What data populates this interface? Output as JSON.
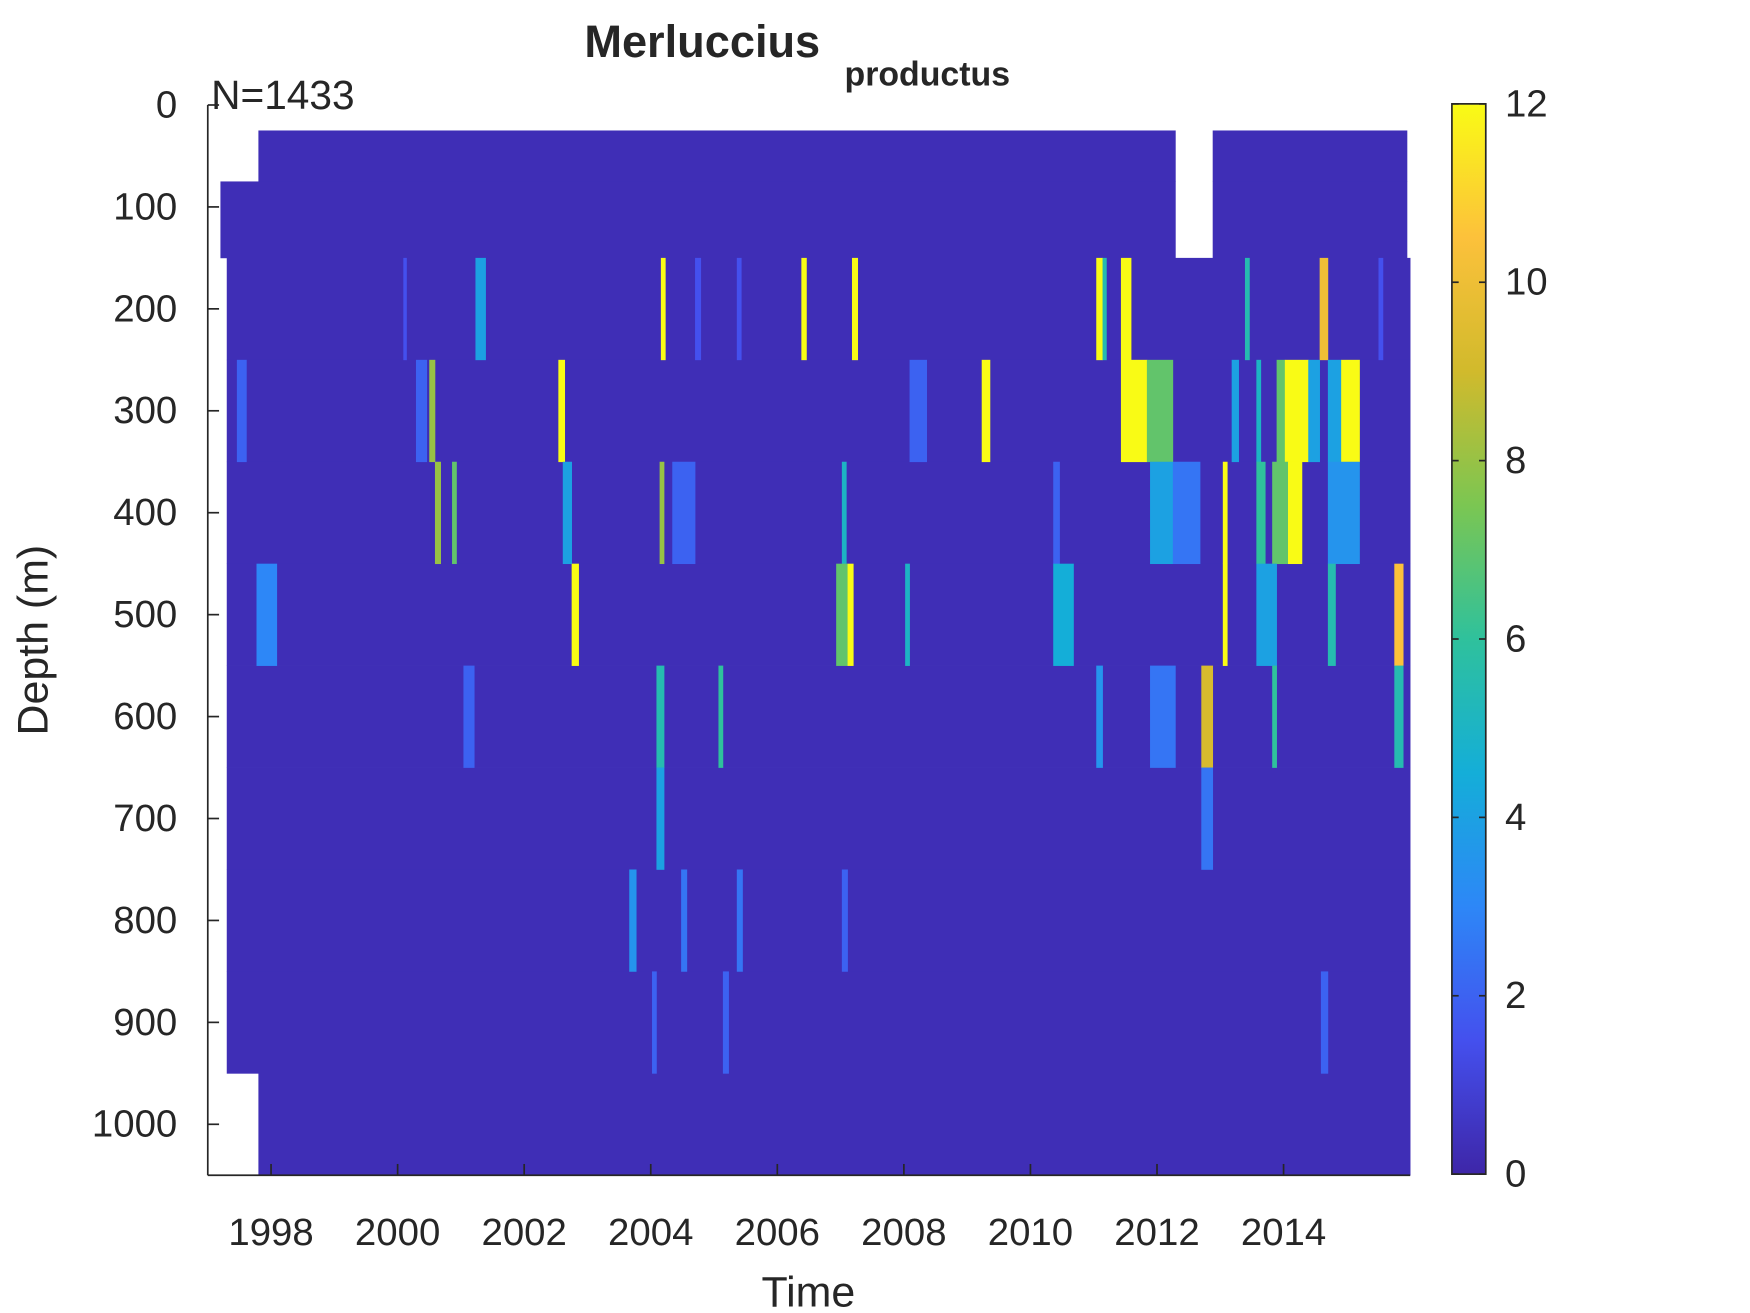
{
  "chart_data": {
    "type": "heatmap",
    "title": "Merluccius",
    "title_subscript": "productus",
    "annotation": "N=1433",
    "x_label": "Time",
    "y_label": "Depth (m)",
    "xlim": [
      1997,
      2016
    ],
    "xticks": [
      1998,
      2000,
      2002,
      2004,
      2006,
      2008,
      2010,
      2012,
      2014
    ],
    "ylim": [
      0,
      1050
    ],
    "y_reversed": true,
    "yticks": [
      0,
      100,
      200,
      300,
      400,
      500,
      600,
      700,
      800,
      900,
      1000
    ],
    "clim": [
      0,
      12
    ],
    "cticks": [
      0,
      2,
      4,
      6,
      8,
      10,
      12
    ],
    "colormap": [
      "#3e26a8",
      "#4450ee",
      "#2d87f7",
      "#14aed8",
      "#2fc19c",
      "#7bc652",
      "#d1ba2c",
      "#fcc13b",
      "#f9fb15"
    ],
    "cells": [
      [
        1997.8,
        2012.29,
        25,
        75,
        0.3
      ],
      [
        2012.88,
        2015.95,
        25,
        75,
        0.3
      ],
      [
        1997.2,
        2012.29,
        75,
        150,
        0.3
      ],
      [
        2012.88,
        2015.95,
        75,
        150,
        0.3
      ],
      [
        1997.3,
        2016,
        150,
        250,
        0.3
      ],
      [
        1997.3,
        2016,
        250,
        350,
        0.3
      ],
      [
        1997.3,
        2016,
        350,
        450,
        0.3
      ],
      [
        1997.3,
        2016,
        450,
        550,
        0.3
      ],
      [
        1997.3,
        2016,
        550,
        650,
        0.3
      ],
      [
        1997.3,
        2016,
        650,
        750,
        0.3
      ],
      [
        1997.3,
        2016,
        750,
        850,
        0.3
      ],
      [
        1997.3,
        2016,
        850,
        950,
        0.3
      ],
      [
        1997.8,
        2016,
        950,
        1050,
        0.3
      ],
      [
        2001.23,
        2001.39,
        150,
        250,
        4
      ],
      [
        2004.16,
        2004.23,
        150,
        250,
        12
      ],
      [
        2006.38,
        2006.46,
        150,
        250,
        12
      ],
      [
        2007.18,
        2007.27,
        150,
        250,
        12
      ],
      [
        2011.04,
        2011.14,
        150,
        250,
        12
      ],
      [
        2011.14,
        2011.2,
        150,
        250,
        5.5
      ],
      [
        2011.43,
        2011.59,
        150,
        250,
        12
      ],
      [
        2013.39,
        2013.46,
        150,
        250,
        5.5
      ],
      [
        2014.57,
        2014.7,
        150,
        250,
        10
      ],
      [
        2000.09,
        2000.14,
        150,
        250,
        1.5
      ],
      [
        2004.7,
        2004.79,
        150,
        250,
        1.5
      ],
      [
        2005.36,
        2005.43,
        150,
        250,
        1.5
      ],
      [
        2015.5,
        2015.57,
        150,
        250,
        1.5
      ],
      [
        1997.46,
        1997.61,
        250,
        350,
        2
      ],
      [
        2000.29,
        2000.46,
        250,
        350,
        2
      ],
      [
        2000.5,
        2000.59,
        250,
        350,
        8
      ],
      [
        2002.54,
        2002.64,
        250,
        350,
        12
      ],
      [
        2008.09,
        2008.36,
        250,
        350,
        2
      ],
      [
        2009.23,
        2009.36,
        250,
        350,
        12
      ],
      [
        2011.43,
        2011.84,
        250,
        350,
        12
      ],
      [
        2011.84,
        2012.25,
        250,
        350,
        7
      ],
      [
        2013.18,
        2013.29,
        250,
        350,
        4
      ],
      [
        2013.57,
        2013.64,
        250,
        350,
        5
      ],
      [
        2013.89,
        2014.02,
        250,
        350,
        7
      ],
      [
        2014.02,
        2014.39,
        250,
        350,
        12
      ],
      [
        2014.39,
        2014.57,
        250,
        350,
        4
      ],
      [
        2014.7,
        2014.91,
        250,
        350,
        4
      ],
      [
        2014.91,
        2015.2,
        250,
        350,
        12
      ],
      [
        2000.59,
        2000.68,
        350,
        450,
        8
      ],
      [
        2000.86,
        2000.93,
        350,
        450,
        7
      ],
      [
        2002.61,
        2002.75,
        350,
        450,
        4
      ],
      [
        2004.14,
        2004.21,
        350,
        450,
        8
      ],
      [
        2004.34,
        2004.7,
        350,
        450,
        2
      ],
      [
        2007.02,
        2007.09,
        350,
        450,
        5
      ],
      [
        2010.36,
        2010.46,
        350,
        450,
        2
      ],
      [
        2011.89,
        2012.25,
        350,
        450,
        4
      ],
      [
        2012.25,
        2012.68,
        350,
        450,
        2.5
      ],
      [
        2013.04,
        2013.11,
        350,
        450,
        12
      ],
      [
        2013.57,
        2013.71,
        350,
        450,
        6
      ],
      [
        2013.82,
        2014.07,
        350,
        450,
        7
      ],
      [
        2014.07,
        2014.29,
        350,
        450,
        12
      ],
      [
        2014.7,
        2015.2,
        350,
        450,
        3.5
      ],
      [
        1997.77,
        1998.09,
        450,
        550,
        3
      ],
      [
        2002.75,
        2002.86,
        450,
        550,
        12
      ],
      [
        2006.93,
        2007.11,
        450,
        550,
        7
      ],
      [
        2007.11,
        2007.2,
        450,
        550,
        12
      ],
      [
        2008.02,
        2008.09,
        450,
        550,
        5
      ],
      [
        2010.36,
        2010.68,
        450,
        550,
        4.5
      ],
      [
        2013.04,
        2013.11,
        450,
        550,
        12
      ],
      [
        2013.57,
        2013.89,
        450,
        550,
        4
      ],
      [
        2014.7,
        2014.82,
        450,
        550,
        5.5
      ],
      [
        2015.75,
        2015.89,
        450,
        550,
        10.5
      ],
      [
        2001.04,
        2001.21,
        550,
        650,
        2
      ],
      [
        2004.09,
        2004.21,
        550,
        650,
        5.5
      ],
      [
        2005.07,
        2005.14,
        550,
        650,
        6
      ],
      [
        2011.04,
        2011.14,
        550,
        650,
        3.5
      ],
      [
        2011.89,
        2012.29,
        550,
        650,
        2.5
      ],
      [
        2012.7,
        2012.88,
        550,
        650,
        9.2
      ],
      [
        2013.82,
        2013.89,
        550,
        650,
        6
      ],
      [
        2015.75,
        2015.89,
        550,
        650,
        5.5
      ],
      [
        2004.09,
        2004.21,
        650,
        750,
        4
      ],
      [
        2012.7,
        2012.88,
        650,
        750,
        2.5
      ],
      [
        2003.66,
        2003.77,
        750,
        850,
        3.5
      ],
      [
        2004.48,
        2004.57,
        750,
        850,
        2.5
      ],
      [
        2005.36,
        2005.45,
        750,
        850,
        2.5
      ],
      [
        2007.02,
        2007.11,
        750,
        850,
        2
      ],
      [
        2004.02,
        2004.09,
        850,
        950,
        2
      ],
      [
        2005.14,
        2005.23,
        850,
        950,
        2
      ],
      [
        2014.59,
        2014.7,
        850,
        950,
        2
      ]
    ]
  }
}
